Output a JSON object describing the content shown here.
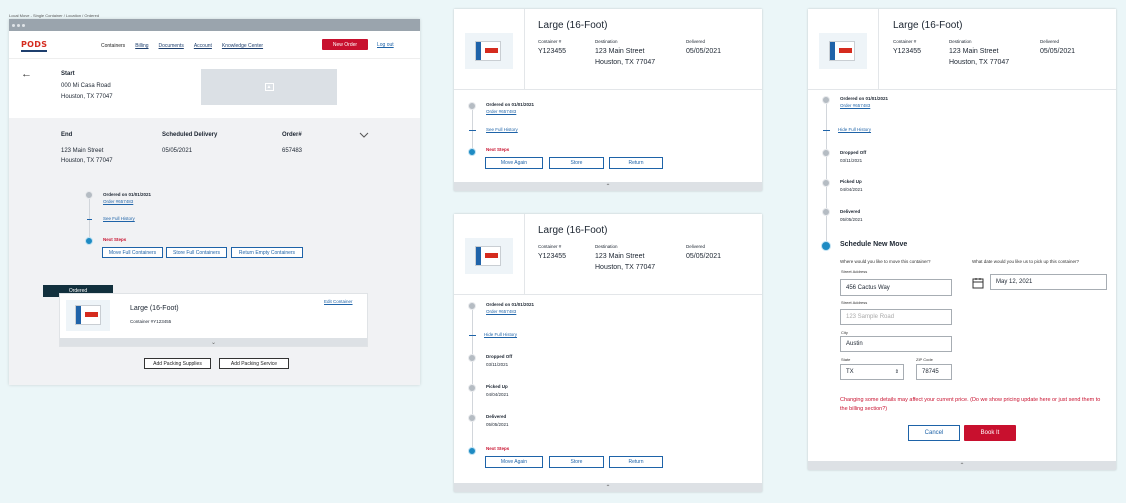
{
  "caption": "Local Move - Single Container / Location / Ordered",
  "nav": {
    "logo": "PODS",
    "links": [
      "Containers",
      "Billing",
      "Documents",
      "Account",
      "Knowledge Center"
    ],
    "new_order": "New Order",
    "logout": "Log out"
  },
  "start": {
    "label": "Start",
    "line1": "000 Mi Casa Road",
    "line2": "Houston, TX 77047"
  },
  "details": {
    "end_label": "End",
    "end_line1": "123 Main Street",
    "end_line2": "Houston, TX 77047",
    "sched_label": "Scheduled Delivery",
    "sched_value": "05/05/2021",
    "order_label": "Order#",
    "order_value": "657483"
  },
  "timeline": {
    "ordered_on": "Ordered on 01/01/2021",
    "order_link": "Order #657483",
    "see_history": "See Full History",
    "hide_history": "Hide Full History",
    "next_steps": "Next Steps",
    "move_full": "Move Full Containers",
    "store_full": "Store Full Containers",
    "return_empty": "Return Empty Containers",
    "dropped_off": "Dropped Off",
    "dropped_date": "03/11/2021",
    "picked_up": "Picked Up",
    "picked_date": "04/04/2021",
    "delivered": "Delivered",
    "delivered_date": "05/05/2021"
  },
  "container_card": {
    "status": "Ordered",
    "edit": "Edit Container",
    "name": "Large (16-Foot)",
    "number": "Container #Y123455",
    "add_supplies": "Add Packing Supplies",
    "add_service": "Add Packing Service"
  },
  "card": {
    "title": "Large (16-Foot)",
    "container_label": "Container #",
    "container_value": "Y123455",
    "dest_label": "Destination",
    "dest_line1": "123 Main Street",
    "dest_line2": "Houston, TX 77047",
    "delivered_label": "Delivered",
    "delivered_value": "05/05/2021",
    "move_again": "Move Again",
    "store": "Store",
    "return": "Return"
  },
  "schedule": {
    "title": "Schedule New Move",
    "where_q": "Where would you like to move this container?",
    "when_q": "What date would you like us to pick up this container?",
    "street_label": "Street Address",
    "street_value": "456 Cactus Way",
    "street2_label": "Street Address",
    "street2_placeholder": "123 Sample Road",
    "city_label": "City",
    "city_value": "Austin",
    "state_label": "State",
    "state_value": "TX",
    "zip_label": "ZIP Code",
    "zip_value": "78745",
    "date_value": "May 12, 2021",
    "warning": "Changing some details may affect your current price. (Do we show pricing update here or just send them to the billing section?)",
    "cancel": "Cancel",
    "book": "Book It"
  },
  "colors": {
    "brand_red": "#c8102e",
    "brand_blue": "#1e3f6e",
    "link_blue": "#1e63a8",
    "background": "#ebf6f8"
  }
}
